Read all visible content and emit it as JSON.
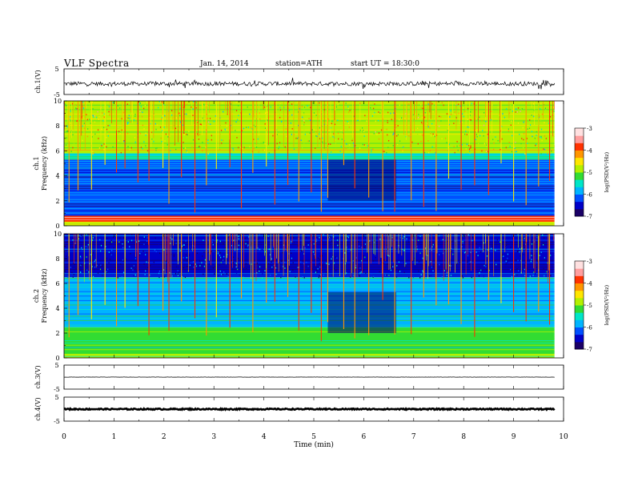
{
  "header": {
    "title": "VLF  Spectra",
    "date": "Jan. 14, 2014",
    "station": "station=ATH",
    "start": "start  UT =    18:30:0"
  },
  "colors": {
    "spectrogram_scale": [
      "#1a0066",
      "#0000c8",
      "#0050ff",
      "#00b4ff",
      "#00e6c8",
      "#32dc32",
      "#b4f000",
      "#ffe600",
      "#ff9600",
      "#ff3200",
      "#ff9e9e",
      "#ffe0e0"
    ],
    "waveform": "#000000"
  },
  "chart_data": [
    {
      "type": "line",
      "name": "ch1-waveform",
      "ylabel": "ch.1(V)",
      "ylim": [
        -5,
        5
      ],
      "yticks": [
        "5",
        "-5"
      ],
      "baseline": -0.8,
      "noise_amplitude": 0.8
    },
    {
      "type": "heatmap",
      "name": "ch1-spectrogram",
      "ylabel_channel": "ch.1",
      "ylabel": "Frequency (kHz)",
      "ylim": [
        0,
        10
      ],
      "yticks": [
        "0",
        "2",
        "4",
        "6",
        "8",
        "10"
      ],
      "colorbar_label": "log(PSD(V²/Hz)",
      "colorbar_range": [
        -7,
        -3
      ],
      "colorbar_ticks": [
        "-3",
        "-4",
        "-5",
        "-6",
        "-7"
      ],
      "regions": [
        {
          "f_from": 5.8,
          "f_to": 10,
          "level": -4.7
        },
        {
          "f_from": 5.3,
          "f_to": 5.8,
          "level": -5.6
        },
        {
          "f_from": 0.8,
          "f_to": 5.3,
          "level": -6.4
        },
        {
          "f_from": 0.3,
          "f_to": 0.8,
          "level": -3.8
        },
        {
          "f_from": 0,
          "f_to": 0.3,
          "level": -5.0
        }
      ],
      "quiet_interval_min": [
        5.28,
        6.65
      ],
      "sferic_times_min": [
        0.1,
        0.28,
        0.55,
        0.82,
        1.05,
        1.22,
        1.48,
        1.7,
        1.98,
        2.1,
        2.35,
        2.62,
        2.85,
        3.05,
        3.32,
        3.55,
        3.78,
        4.05,
        4.22,
        4.48,
        4.7,
        4.95,
        5.15,
        5.28,
        5.6,
        5.82,
        6.1,
        6.38,
        6.62,
        6.95,
        7.2,
        7.45,
        7.7,
        7.95,
        8.22,
        8.5,
        8.75,
        9.0,
        9.25,
        9.5,
        9.72
      ]
    },
    {
      "type": "heatmap",
      "name": "ch2-spectrogram",
      "ylabel_channel": "ch.2",
      "ylabel": "Frequency (kHz)",
      "ylim": [
        0,
        10
      ],
      "yticks": [
        "0",
        "2",
        "4",
        "6",
        "8",
        "10"
      ],
      "colorbar_label": "log(PSD(V²/Hz)",
      "colorbar_range": [
        -7,
        -3
      ],
      "colorbar_ticks": [
        "-3",
        "-4",
        "-5",
        "-6",
        "-7"
      ],
      "regions": [
        {
          "f_from": 6.5,
          "f_to": 10,
          "level": -6.5
        },
        {
          "f_from": 5.0,
          "f_to": 6.5,
          "level": -6.0
        },
        {
          "f_from": 2.5,
          "f_to": 5.0,
          "level": -5.8
        },
        {
          "f_from": 0.3,
          "f_to": 2.5,
          "level": -5.2
        },
        {
          "f_from": 0,
          "f_to": 0.3,
          "level": -4.8
        }
      ],
      "quiet_interval_min": [
        5.28,
        6.65
      ],
      "sferic_times_min": [
        0.1,
        0.28,
        0.55,
        0.82,
        1.05,
        1.22,
        1.48,
        1.7,
        1.98,
        2.1,
        2.35,
        2.62,
        2.85,
        3.05,
        3.32,
        3.55,
        3.78,
        4.05,
        4.22,
        4.48,
        4.7,
        4.95,
        5.15,
        5.28,
        5.6,
        5.82,
        6.1,
        6.38,
        6.62,
        6.95,
        7.2,
        7.45,
        7.7,
        7.95,
        8.22,
        8.5,
        8.75,
        9.0,
        9.25,
        9.5,
        9.72
      ]
    },
    {
      "type": "line",
      "name": "ch3-waveform",
      "ylabel": "ch.3(V)",
      "ylim": [
        -5,
        5
      ],
      "yticks": [
        "5",
        "-5"
      ],
      "baseline": 0,
      "noise_amplitude": 0.05
    },
    {
      "type": "line",
      "name": "ch4-waveform",
      "ylabel": "ch.4(V)",
      "ylim": [
        -5,
        5
      ],
      "yticks": [
        "5",
        "-5"
      ],
      "baseline": 0,
      "noise_amplitude": 0.25
    }
  ],
  "xaxis": {
    "label": "Time  (min)",
    "xlim": [
      0,
      10
    ],
    "data_end_min": 9.82,
    "ticks": [
      "0",
      "1",
      "2",
      "3",
      "4",
      "5",
      "6",
      "7",
      "8",
      "9",
      "10"
    ]
  }
}
